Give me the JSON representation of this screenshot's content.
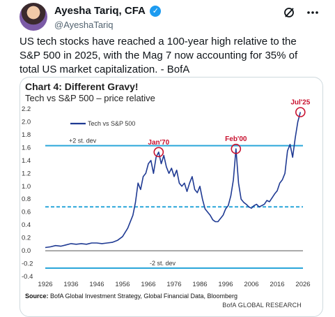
{
  "author": {
    "name": "Ayesha Tariq, CFA",
    "handle": "@AyeshaTariq"
  },
  "tweet": {
    "text": "US tech stocks have reached a 100-year high relative to the S&P 500 in 2025, with the Mag 7 now accounting for 35% of total US market capitalization. - BofA"
  },
  "colors": {
    "series": "#1f3a93",
    "band": "#2aa6d9",
    "annotation": "#c8102e",
    "verified": "#1d9bf0"
  },
  "icons": {
    "verified": "verified-badge-icon",
    "grok": "grok-icon",
    "more": "more-icon"
  },
  "chart": {
    "title": "Chart 4: Different Gravy!",
    "subtitle": "Tech vs S&P 500 – price relative",
    "source_label": "Source:",
    "source_text": " BofA Global Investment Strategy, Global Financial Data, Bloomberg",
    "brand": "BofA GLOBAL RESEARCH"
  },
  "chart_data": {
    "type": "line",
    "series": [
      {
        "name": "Tech vs S&P 500",
        "points": [
          [
            1926,
            0.05
          ],
          [
            1928,
            0.06
          ],
          [
            1930,
            0.08
          ],
          [
            1932,
            0.07
          ],
          [
            1934,
            0.09
          ],
          [
            1936,
            0.11
          ],
          [
            1938,
            0.1
          ],
          [
            1940,
            0.11
          ],
          [
            1942,
            0.1
          ],
          [
            1944,
            0.12
          ],
          [
            1946,
            0.12
          ],
          [
            1948,
            0.11
          ],
          [
            1950,
            0.12
          ],
          [
            1952,
            0.13
          ],
          [
            1954,
            0.16
          ],
          [
            1956,
            0.22
          ],
          [
            1958,
            0.35
          ],
          [
            1960,
            0.55
          ],
          [
            1961,
            0.75
          ],
          [
            1962,
            1.05
          ],
          [
            1963,
            0.95
          ],
          [
            1964,
            1.15
          ],
          [
            1965,
            1.2
          ],
          [
            1966,
            1.35
          ],
          [
            1967,
            1.4
          ],
          [
            1968,
            1.2
          ],
          [
            1969,
            1.45
          ],
          [
            1970,
            1.53
          ],
          [
            1971,
            1.35
          ],
          [
            1972,
            1.48
          ],
          [
            1973,
            1.3
          ],
          [
            1974,
            1.2
          ],
          [
            1975,
            1.28
          ],
          [
            1976,
            1.15
          ],
          [
            1977,
            1.25
          ],
          [
            1978,
            1.05
          ],
          [
            1979,
            1.0
          ],
          [
            1980,
            1.05
          ],
          [
            1981,
            0.92
          ],
          [
            1982,
            1.05
          ],
          [
            1983,
            1.15
          ],
          [
            1984,
            0.95
          ],
          [
            1985,
            0.9
          ],
          [
            1986,
            1.0
          ],
          [
            1987,
            0.8
          ],
          [
            1988,
            0.65
          ],
          [
            1989,
            0.6
          ],
          [
            1990,
            0.55
          ],
          [
            1991,
            0.48
          ],
          [
            1992,
            0.45
          ],
          [
            1993,
            0.45
          ],
          [
            1994,
            0.5
          ],
          [
            1995,
            0.55
          ],
          [
            1996,
            0.65
          ],
          [
            1997,
            0.7
          ],
          [
            1998,
            0.85
          ],
          [
            1999,
            1.1
          ],
          [
            2000,
            1.58
          ],
          [
            2001,
            1.05
          ],
          [
            2002,
            0.8
          ],
          [
            2003,
            0.75
          ],
          [
            2004,
            0.72
          ],
          [
            2005,
            0.68
          ],
          [
            2006,
            0.66
          ],
          [
            2007,
            0.7
          ],
          [
            2008,
            0.72
          ],
          [
            2009,
            0.68
          ],
          [
            2010,
            0.7
          ],
          [
            2011,
            0.72
          ],
          [
            2012,
            0.78
          ],
          [
            2013,
            0.76
          ],
          [
            2014,
            0.82
          ],
          [
            2015,
            0.88
          ],
          [
            2016,
            0.93
          ],
          [
            2017,
            1.05
          ],
          [
            2018,
            1.1
          ],
          [
            2019,
            1.2
          ],
          [
            2020,
            1.55
          ],
          [
            2021,
            1.65
          ],
          [
            2022,
            1.45
          ],
          [
            2023,
            1.75
          ],
          [
            2024,
            2.0
          ],
          [
            2025,
            2.15
          ]
        ]
      }
    ],
    "x_ticks": [
      "1926",
      "1936",
      "1946",
      "1956",
      "1966",
      "1976",
      "1986",
      "1996",
      "2006",
      "2016",
      "2026"
    ],
    "y_ticks": [
      "2.2",
      "2.0",
      "1.8",
      "1.6",
      "1.4",
      "1.2",
      "1.0",
      "0.8",
      "0.6",
      "0.4",
      "0.2",
      "0.0",
      "-0.2",
      "-0.4"
    ],
    "xlim": [
      1926,
      2026
    ],
    "ylim": [
      -0.4,
      2.2
    ],
    "reference_lines": [
      {
        "value": 1.63,
        "label": "+2 st. dev",
        "style": "solid"
      },
      {
        "value": 0.68,
        "label": "",
        "style": "dashed"
      },
      {
        "value": -0.27,
        "label": "-2 st. dev",
        "style": "solid"
      }
    ],
    "annotations": [
      {
        "label": "Jan'70",
        "x": 1970,
        "y": 1.53
      },
      {
        "label": "Feb'00",
        "x": 2000,
        "y": 1.58
      },
      {
        "label": "Jul'25",
        "x": 2025,
        "y": 2.15
      }
    ],
    "legend_position": "top-left"
  }
}
